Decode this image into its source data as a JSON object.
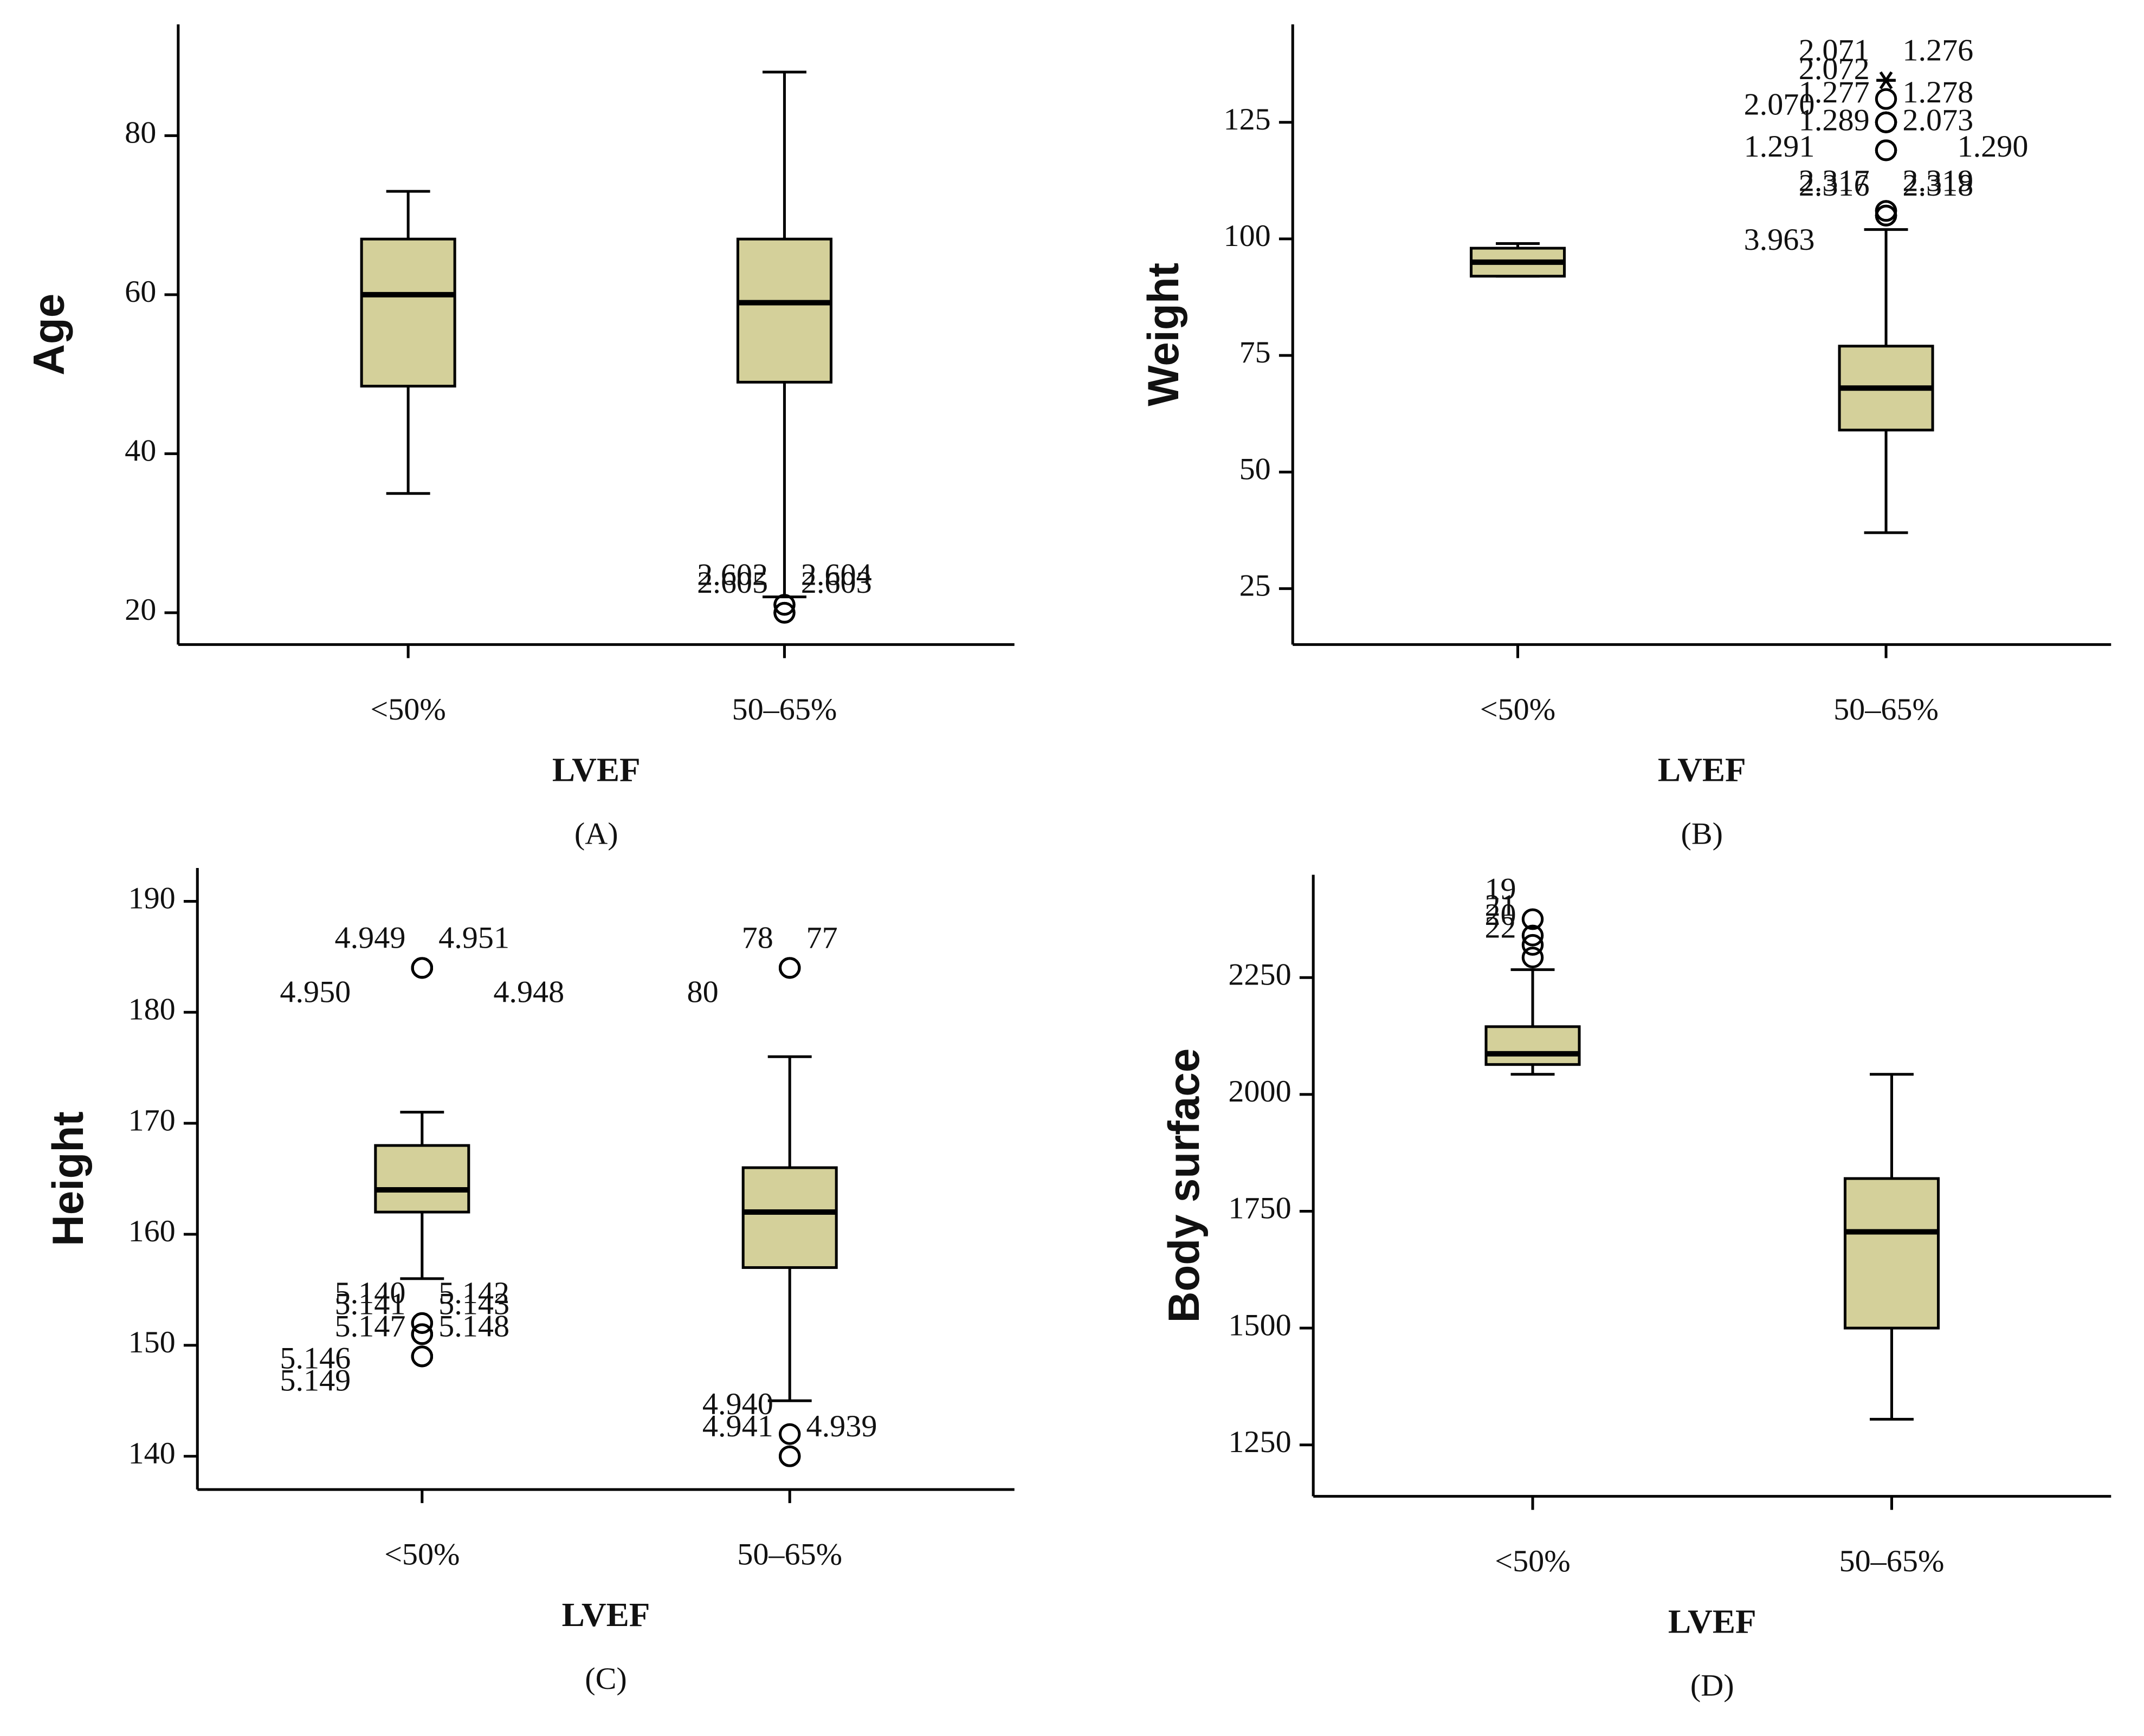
{
  "chart_data": [
    {
      "type": "box",
      "panel": "(A)",
      "ylabel": "Age",
      "xlabel": "LVEF",
      "categories": [
        "<50%",
        "50–65%"
      ],
      "color": "#d4d09a",
      "ylim": [
        16,
        94
      ],
      "yticks": [
        20,
        40,
        60,
        80
      ],
      "boxes": [
        {
          "whislo": 35,
          "q1": 48.5,
          "med": 60,
          "q3": 67,
          "whishi": 73,
          "outliers": []
        },
        {
          "whislo": 22,
          "q1": 49,
          "med": 59,
          "q3": 67,
          "whishi": 88,
          "outliers": [
            {
              "value": 21,
              "label": "2.602"
            },
            {
              "value": 21,
              "label": "2.604"
            },
            {
              "value": 20,
              "label": "2.605"
            },
            {
              "value": 20,
              "label": "2.603"
            }
          ]
        }
      ]
    },
    {
      "type": "box",
      "panel": "(B)",
      "ylabel": "Weight",
      "xlabel": "LVEF",
      "categories": [
        "<50%",
        "50–65%"
      ],
      "color": "#d4d09a",
      "ylim": [
        13,
        146
      ],
      "yticks": [
        25,
        50,
        75,
        100,
        125
      ],
      "boxes": [
        {
          "whislo": 92,
          "q1": 92,
          "med": 95,
          "q3": 98,
          "whishi": 99,
          "outliers": []
        },
        {
          "whislo": 37,
          "q1": 59,
          "med": 68,
          "q3": 77,
          "whishi": 102,
          "outliers": [
            {
              "value": 105,
              "label": "2.316"
            },
            {
              "value": 105,
              "label": "2.318"
            },
            {
              "value": 105,
              "label": "3.963"
            },
            {
              "value": 106,
              "label": "2.317"
            },
            {
              "value": 106,
              "label": "2.319"
            },
            {
              "value": 119,
              "label": "1.289"
            },
            {
              "value": 119,
              "label": "2.073"
            },
            {
              "value": 125,
              "label": "1.277"
            },
            {
              "value": 125,
              "label": "1.278"
            },
            {
              "value": 125,
              "label": "1.291"
            },
            {
              "value": 125,
              "label": "1.290"
            },
            {
              "value": 130,
              "label": "2.072"
            },
            {
              "value": 134,
              "label": "2.071",
              "marker": "star"
            },
            {
              "value": 134,
              "label": "1.276",
              "marker": "star"
            },
            {
              "value": 134,
              "label": "2.070",
              "marker": "star"
            }
          ]
        }
      ]
    },
    {
      "type": "box",
      "panel": "(C)",
      "ylabel": "Height",
      "xlabel": "LVEF",
      "categories": [
        "<50%",
        "50–65%"
      ],
      "color": "#d4d09a",
      "ylim": [
        137,
        193
      ],
      "yticks": [
        140,
        150,
        160,
        170,
        180,
        190
      ],
      "boxes": [
        {
          "whislo": 156,
          "q1": 162,
          "med": 164,
          "q3": 168,
          "whishi": 171,
          "outliers": [
            {
              "value": 184,
              "label": "4.949"
            },
            {
              "value": 184,
              "label": "4.951"
            },
            {
              "value": 184,
              "label": "4.950"
            },
            {
              "value": 184,
              "label": "4.948"
            },
            {
              "value": 152,
              "label": "5.140"
            },
            {
              "value": 152,
              "label": "5.142"
            },
            {
              "value": 151,
              "label": "5.141"
            },
            {
              "value": 151,
              "label": "5.143"
            },
            {
              "value": 151,
              "label": "5.146"
            },
            {
              "value": 149,
              "label": "5.147"
            },
            {
              "value": 149,
              "label": "5.148"
            },
            {
              "value": 149,
              "label": "5.149"
            }
          ]
        },
        {
          "whislo": 145,
          "q1": 157,
          "med": 162,
          "q3": 166,
          "whishi": 176,
          "outliers": [
            {
              "value": 184,
              "label": "78"
            },
            {
              "value": 184,
              "label": "77"
            },
            {
              "value": 184,
              "label": "80"
            },
            {
              "value": 142,
              "label": "4.940"
            },
            {
              "value": 140,
              "label": "4.941"
            },
            {
              "value": 140,
              "label": "4.939"
            }
          ]
        }
      ]
    },
    {
      "type": "box",
      "panel": "(D)",
      "ylabel": "Body surface",
      "xlabel": "LVEF",
      "categories": [
        "<50%",
        "50–65%"
      ],
      "color": "#d4d09a",
      "ylim": [
        1140,
        2470
      ],
      "yticks": [
        1250,
        1500,
        1750,
        2000,
        2250
      ],
      "boxes": [
        {
          "whislo": 2043,
          "q1": 2064,
          "med": 2087,
          "q3": 2145,
          "whishi": 2267,
          "outliers": [
            {
              "value": 2375,
              "label": "19"
            },
            {
              "value": 2340,
              "label": "21"
            },
            {
              "value": 2320,
              "label": "20"
            },
            {
              "value": 2293,
              "label": "22"
            }
          ]
        },
        {
          "whislo": 1305,
          "q1": 1500,
          "med": 1706,
          "q3": 1820,
          "whishi": 2043,
          "outliers": []
        }
      ]
    }
  ]
}
